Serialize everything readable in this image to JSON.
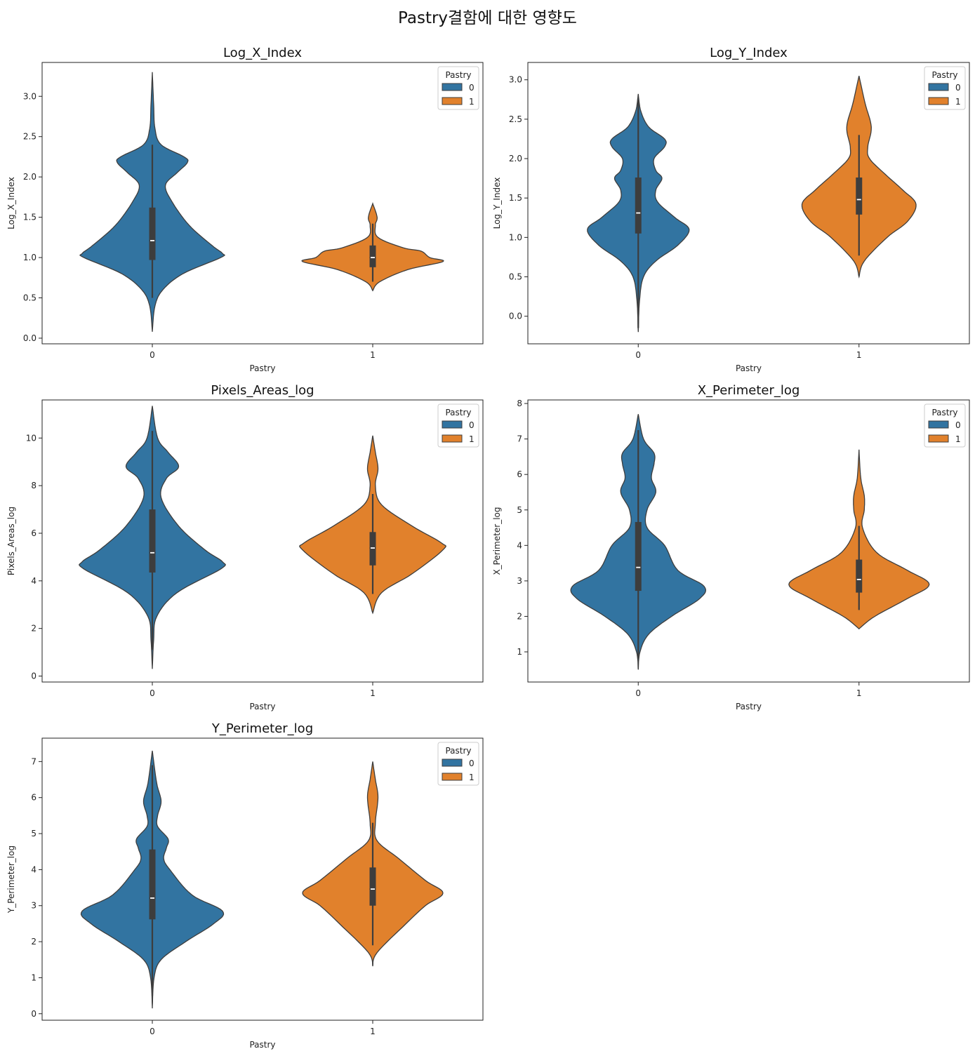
{
  "suptitle": "Pastry결함에 대한 영향도",
  "colors": {
    "class0": "#3274a1",
    "class1": "#e1812c",
    "outline": "#3d3d3d"
  },
  "chart_data": [
    {
      "type": "violin",
      "title": "Log_X_Index",
      "xlabel": "Pastry",
      "ylabel": "Log_X_Index",
      "categories": [
        "0",
        "1"
      ],
      "ylim": [
        -0.07,
        3.42
      ],
      "yticks": [
        "0.0",
        "0.5",
        "1.0",
        "1.5",
        "2.0",
        "2.5",
        "3.0"
      ],
      "legend": {
        "title": "Pastry",
        "entries": [
          "0",
          "1"
        ],
        "position": "top-right"
      },
      "violins": [
        {
          "category": "0",
          "profile": [
            [
              0.08,
              0.0
            ],
            [
              0.4,
              0.03
            ],
            [
              0.6,
              0.12
            ],
            [
              0.8,
              0.35
            ],
            [
              1.0,
              0.78
            ],
            [
              1.05,
              0.8
            ],
            [
              1.15,
              0.68
            ],
            [
              1.4,
              0.42
            ],
            [
              1.7,
              0.22
            ],
            [
              1.9,
              0.15
            ],
            [
              2.05,
              0.28
            ],
            [
              2.18,
              0.4
            ],
            [
              2.25,
              0.36
            ],
            [
              2.4,
              0.1
            ],
            [
              2.6,
              0.03
            ],
            [
              2.9,
              0.015
            ],
            [
              3.3,
              0.0
            ]
          ],
          "box": {
            "q1": 0.97,
            "median": 1.21,
            "q3": 1.62,
            "whisker_low": 0.5,
            "whisker_high": 2.4
          }
        },
        {
          "category": "1",
          "profile": [
            [
              0.59,
              0.0
            ],
            [
              0.7,
              0.08
            ],
            [
              0.85,
              0.4
            ],
            [
              0.95,
              0.8
            ],
            [
              1.0,
              0.65
            ],
            [
              1.08,
              0.55
            ],
            [
              1.12,
              0.35
            ],
            [
              1.25,
              0.06
            ],
            [
              1.4,
              0.03
            ],
            [
              1.5,
              0.05
            ],
            [
              1.67,
              0.0
            ]
          ],
          "box": {
            "q1": 0.88,
            "median": 1.0,
            "q3": 1.15,
            "whisker_low": 0.7,
            "whisker_high": 1.42
          }
        }
      ]
    },
    {
      "type": "violin",
      "title": "Log_Y_Index",
      "xlabel": "Pastry",
      "ylabel": "Log_Y_Index",
      "categories": [
        "0",
        "1"
      ],
      "ylim": [
        -0.35,
        3.22
      ],
      "yticks": [
        "0.0",
        "0.5",
        "1.0",
        "1.5",
        "2.0",
        "2.5",
        "3.0"
      ],
      "legend": {
        "title": "Pastry",
        "entries": [
          "0",
          "1"
        ],
        "position": "top-right"
      },
      "violins": [
        {
          "category": "0",
          "profile": [
            [
              -0.2,
              0.0
            ],
            [
              0.2,
              0.015
            ],
            [
              0.5,
              0.06
            ],
            [
              0.7,
              0.2
            ],
            [
              0.9,
              0.45
            ],
            [
              1.1,
              0.58
            ],
            [
              1.25,
              0.42
            ],
            [
              1.45,
              0.22
            ],
            [
              1.6,
              0.2
            ],
            [
              1.75,
              0.27
            ],
            [
              1.85,
              0.2
            ],
            [
              2.0,
              0.18
            ],
            [
              2.15,
              0.3
            ],
            [
              2.25,
              0.3
            ],
            [
              2.4,
              0.12
            ],
            [
              2.6,
              0.03
            ],
            [
              2.82,
              0.0
            ]
          ],
          "box": {
            "q1": 1.05,
            "median": 1.31,
            "q3": 1.76,
            "whisker_low": -0.15,
            "whisker_high": 2.75
          }
        },
        {
          "category": "1",
          "profile": [
            [
              0.5,
              0.0
            ],
            [
              0.7,
              0.06
            ],
            [
              1.0,
              0.32
            ],
            [
              1.2,
              0.55
            ],
            [
              1.42,
              0.65
            ],
            [
              1.6,
              0.5
            ],
            [
              1.8,
              0.3
            ],
            [
              2.0,
              0.12
            ],
            [
              2.15,
              0.1
            ],
            [
              2.4,
              0.14
            ],
            [
              2.7,
              0.07
            ],
            [
              3.05,
              0.0
            ]
          ],
          "box": {
            "q1": 1.29,
            "median": 1.48,
            "q3": 1.76,
            "whisker_low": 0.77,
            "whisker_high": 2.3
          }
        }
      ]
    },
    {
      "type": "violin",
      "title": "Pixels_Areas_log",
      "xlabel": "Pastry",
      "ylabel": "Pixels_Areas_log",
      "categories": [
        "0",
        "1"
      ],
      "ylim": [
        -0.25,
        11.6
      ],
      "yticks": [
        "0",
        "2",
        "4",
        "6",
        "8",
        "10"
      ],
      "legend": {
        "title": "Pastry",
        "entries": [
          "0",
          "1"
        ],
        "position": "top-right"
      },
      "violins": [
        {
          "category": "0",
          "profile": [
            [
              0.3,
              0.0
            ],
            [
              1.5,
              0.015
            ],
            [
              2.5,
              0.05
            ],
            [
              3.5,
              0.28
            ],
            [
              4.5,
              0.78
            ],
            [
              4.8,
              0.8
            ],
            [
              5.3,
              0.6
            ],
            [
              6.3,
              0.3
            ],
            [
              7.5,
              0.1
            ],
            [
              8.3,
              0.16
            ],
            [
              8.8,
              0.3
            ],
            [
              9.4,
              0.18
            ],
            [
              10.0,
              0.06
            ],
            [
              11.35,
              0.0
            ]
          ],
          "box": {
            "q1": 4.35,
            "median": 5.18,
            "q3": 7.0,
            "whisker_low": 1.1,
            "whisker_high": 10.3
          }
        },
        {
          "category": "1",
          "profile": [
            [
              2.65,
              0.0
            ],
            [
              3.5,
              0.1
            ],
            [
              4.3,
              0.45
            ],
            [
              5.3,
              0.8
            ],
            [
              5.6,
              0.78
            ],
            [
              6.3,
              0.45
            ],
            [
              7.2,
              0.1
            ],
            [
              8.0,
              0.03
            ],
            [
              8.7,
              0.06
            ],
            [
              9.4,
              0.03
            ],
            [
              10.1,
              0.0
            ]
          ],
          "box": {
            "q1": 4.65,
            "median": 5.38,
            "q3": 6.05,
            "whisker_low": 3.45,
            "whisker_high": 7.65
          }
        }
      ]
    },
    {
      "type": "violin",
      "title": "X_Perimeter_log",
      "xlabel": "Pastry",
      "ylabel": "X_Perimeter_log",
      "categories": [
        "0",
        "1"
      ],
      "ylim": [
        0.15,
        8.1
      ],
      "yticks": [
        "1",
        "2",
        "3",
        "4",
        "5",
        "6",
        "7",
        "8"
      ],
      "legend": {
        "title": "Pastry",
        "entries": [
          "0",
          "1"
        ],
        "position": "top-right"
      },
      "violins": [
        {
          "category": "0",
          "profile": [
            [
              0.5,
              0.0
            ],
            [
              1.0,
              0.02
            ],
            [
              1.5,
              0.12
            ],
            [
              2.0,
              0.38
            ],
            [
              2.5,
              0.7
            ],
            [
              2.85,
              0.75
            ],
            [
              3.3,
              0.45
            ],
            [
              4.0,
              0.3
            ],
            [
              4.5,
              0.1
            ],
            [
              5.0,
              0.1
            ],
            [
              5.5,
              0.2
            ],
            [
              5.9,
              0.15
            ],
            [
              6.3,
              0.18
            ],
            [
              6.6,
              0.18
            ],
            [
              7.0,
              0.06
            ],
            [
              7.7,
              0.0
            ]
          ],
          "box": {
            "q1": 2.72,
            "median": 3.38,
            "q3": 4.66,
            "whisker_low": 0.8,
            "whisker_high": 7.25
          }
        },
        {
          "category": "1",
          "profile": [
            [
              1.65,
              0.0
            ],
            [
              2.0,
              0.18
            ],
            [
              2.5,
              0.55
            ],
            [
              2.9,
              0.8
            ],
            [
              3.3,
              0.55
            ],
            [
              3.8,
              0.2
            ],
            [
              4.5,
              0.04
            ],
            [
              5.0,
              0.06
            ],
            [
              5.4,
              0.06
            ],
            [
              5.9,
              0.02
            ],
            [
              6.7,
              0.0
            ]
          ],
          "box": {
            "q1": 2.67,
            "median": 3.04,
            "q3": 3.6,
            "whisker_low": 2.18,
            "whisker_high": 4.55
          }
        }
      ]
    },
    {
      "type": "violin",
      "title": "Y_Perimeter_log",
      "xlabel": "Pastry",
      "ylabel": "Y_Perimeter_log",
      "categories": [
        "0",
        "1"
      ],
      "ylim": [
        -0.18,
        7.65
      ],
      "yticks": [
        "0",
        "1",
        "2",
        "3",
        "4",
        "5",
        "6",
        "7"
      ],
      "legend": {
        "title": "Pastry",
        "entries": [
          "0",
          "1"
        ],
        "position": "top-right"
      },
      "violins": [
        {
          "category": "0",
          "profile": [
            [
              0.15,
              0.0
            ],
            [
              1.0,
              0.02
            ],
            [
              1.5,
              0.1
            ],
            [
              2.0,
              0.38
            ],
            [
              2.5,
              0.7
            ],
            [
              2.85,
              0.8
            ],
            [
              3.3,
              0.45
            ],
            [
              4.0,
              0.2
            ],
            [
              4.3,
              0.13
            ],
            [
              4.6,
              0.16
            ],
            [
              4.85,
              0.18
            ],
            [
              5.2,
              0.06
            ],
            [
              5.5,
              0.06
            ],
            [
              5.9,
              0.1
            ],
            [
              6.4,
              0.05
            ],
            [
              7.3,
              0.0
            ]
          ],
          "box": {
            "q1": 2.62,
            "median": 3.21,
            "q3": 4.56,
            "whisker_low": 0.5,
            "whisker_high": 6.9
          }
        },
        {
          "category": "1",
          "profile": [
            [
              1.32,
              0.0
            ],
            [
              1.7,
              0.05
            ],
            [
              2.5,
              0.38
            ],
            [
              3.0,
              0.6
            ],
            [
              3.35,
              0.8
            ],
            [
              3.7,
              0.6
            ],
            [
              4.3,
              0.3
            ],
            [
              4.8,
              0.05
            ],
            [
              5.3,
              0.03
            ],
            [
              6.0,
              0.06
            ],
            [
              6.5,
              0.03
            ],
            [
              7.0,
              0.0
            ]
          ],
          "box": {
            "q1": 3.0,
            "median": 3.46,
            "q3": 4.06,
            "whisker_low": 1.9,
            "whisker_high": 5.3
          }
        }
      ]
    }
  ]
}
